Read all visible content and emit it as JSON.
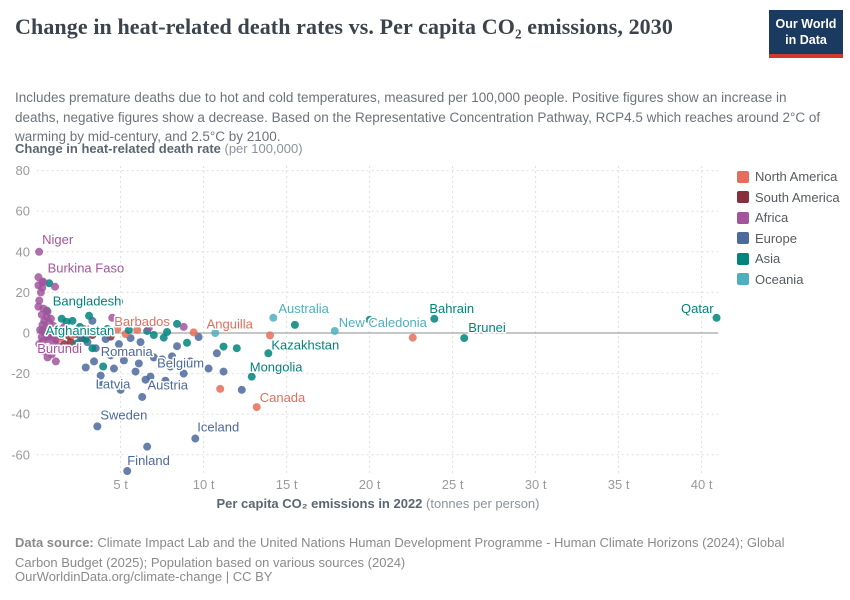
{
  "header": {
    "title": "Change in heat-related death rates vs. Per capita CO₂ emissions, 2030",
    "logo_line1": "Our World",
    "logo_line2": "in Data"
  },
  "subtitle": "Includes premature deaths due to hot and cold temperatures, measured per 100,000 people. Positive figures show an increase in deaths, negative figures show a decrease. Based on the Representative Concentration Pathway, RCP4.5 which reaches around 2°C of warming by mid-century, and 2.5°C by 2100.",
  "footer": {
    "datasource_label": "Data source:",
    "datasource_text": " Climate Impact Lab and the United Nations Human Development Programme - Human Climate Horizons (2024); Global Carbon Budget (2025); Population based on various sources (2024)",
    "citation": "OurWorldinData.org/climate-change | CC BY"
  },
  "chart_data": {
    "type": "scatter",
    "x_axis": {
      "title_bold": "Per capita CO₂ emissions in 2022",
      "title_light": " (tonnes per person)",
      "ticks": [
        5,
        10,
        15,
        20,
        25,
        30,
        35,
        40
      ],
      "tick_suffix": " t",
      "lim": [
        0,
        41
      ]
    },
    "y_axis": {
      "title_bold": "Change in heat-related death rate",
      "title_light": " (per 100,000)",
      "ticks": [
        80,
        60,
        40,
        20,
        0,
        -20,
        -40,
        -60
      ],
      "lim": [
        -72,
        84
      ]
    },
    "grid": "dashed",
    "legend_position": "right",
    "legend": [
      {
        "name": "North America",
        "color": "#e56e5a"
      },
      {
        "name": "South America",
        "color": "#883039"
      },
      {
        "name": "Africa",
        "color": "#a2559c"
      },
      {
        "name": "Europe",
        "color": "#4c6a9c"
      },
      {
        "name": "Asia",
        "color": "#00847e"
      },
      {
        "name": "Oceania",
        "color": "#4eafbe"
      }
    ],
    "series": [
      {
        "name": "South America",
        "color": "#883039",
        "points": [
          [
            0.8,
            -0.5
          ],
          [
            1.4,
            0.5
          ],
          [
            1.9,
            -1.5
          ],
          [
            2.3,
            -0.5
          ],
          [
            2.7,
            -2.5
          ],
          [
            3.3,
            -1
          ],
          [
            4.4,
            -1.8
          ],
          [
            1.1,
            -3.2
          ],
          [
            2.0,
            -4.5
          ],
          [
            1.6,
            -5.5
          ],
          [
            0.6,
            -1.8
          ],
          [
            2.9,
            1
          ]
        ],
        "labeled": []
      },
      {
        "name": "Europe",
        "color": "#4c6a9c",
        "points": [
          [
            2.0,
            -0.5
          ],
          [
            2.6,
            -2
          ],
          [
            3.0,
            -4.5
          ],
          [
            2.3,
            -6.5
          ],
          [
            4.1,
            -3
          ],
          [
            4.9,
            -5.5
          ],
          [
            5.6,
            -2.5
          ],
          [
            6.2,
            -4.5
          ],
          [
            8.4,
            -6.5
          ],
          [
            8.1,
            -11.5
          ],
          [
            4.4,
            -11
          ],
          [
            5.2,
            -13.5
          ],
          [
            6.1,
            -15
          ],
          [
            7.0,
            -12
          ],
          [
            8.0,
            -16.5
          ],
          [
            9.2,
            -14
          ],
          [
            10.3,
            -17.5
          ],
          [
            5.9,
            -19
          ],
          [
            6.8,
            -21.5
          ],
          [
            7.7,
            -23.5
          ],
          [
            8.8,
            -20
          ],
          [
            4.6,
            -17.5
          ],
          [
            3.4,
            -14
          ],
          [
            2.9,
            -17
          ],
          [
            3.9,
            -25.5
          ],
          [
            5.0,
            -28
          ],
          [
            6.3,
            -31.5
          ],
          [
            12.3,
            -28
          ],
          [
            11.2,
            -19
          ],
          [
            6.6,
            -56
          ],
          [
            3.3,
            6
          ],
          [
            9.7,
            -2
          ],
          [
            10.8,
            -10
          ]
        ],
        "labeled": [
          {
            "x": 3.5,
            "y": -7.5,
            "label": "Romania",
            "dx": 5,
            "dy": 8,
            "anchor": "start"
          },
          {
            "x": 7.5,
            "y": -13,
            "label": "Belgium",
            "dx": -5,
            "dy": 8,
            "anchor": "start"
          },
          {
            "x": 3.8,
            "y": -21,
            "label": "Latvia",
            "dx": -5,
            "dy": 13,
            "anchor": "start"
          },
          {
            "x": 6.5,
            "y": -23,
            "label": "Austria",
            "dx": 2,
            "dy": 10,
            "anchor": "start"
          },
          {
            "x": 3.6,
            "y": -46,
            "label": "Sweden",
            "dx": 3,
            "dy": -7,
            "anchor": "start"
          },
          {
            "x": 9.5,
            "y": -52,
            "label": "Iceland",
            "dx": 2,
            "dy": -7,
            "anchor": "start"
          },
          {
            "x": 5.4,
            "y": -68,
            "label": "Finland",
            "dx": 0,
            "dy": -6,
            "anchor": "start"
          }
        ]
      },
      {
        "name": "North America",
        "color": "#e56e5a",
        "points": [
          [
            1.35,
            -2.5
          ],
          [
            2.1,
            -1
          ],
          [
            3.2,
            0.5
          ],
          [
            6.0,
            1.5
          ],
          [
            5.3,
            -0.5
          ],
          [
            2.8,
            2
          ],
          [
            11.0,
            -27.5
          ],
          [
            22.6,
            -2.3
          ],
          [
            14.0,
            -1.2
          ]
        ],
        "labeled": [
          {
            "x": 4.8,
            "y": 2,
            "label": "Barbados",
            "dx": -3,
            "dy": -3,
            "anchor": "start"
          },
          {
            "x": 9.4,
            "y": 0.3,
            "label": "Anguilla",
            "dx": 13,
            "dy": -4,
            "anchor": "start"
          },
          {
            "x": 13.2,
            "y": -36.5,
            "label": "Canada",
            "dx": 3,
            "dy": -5,
            "anchor": "start"
          }
        ]
      },
      {
        "name": "Oceania",
        "color": "#4eafbe",
        "points": [
          [
            10.7,
            0
          ]
        ],
        "labeled": [
          {
            "x": 14.2,
            "y": 7.5,
            "label": "Australia",
            "dx": 5,
            "dy": -5,
            "anchor": "start"
          },
          {
            "x": 17.9,
            "y": 1,
            "label": "New Caledonia",
            "dx": 4,
            "dy": -4,
            "anchor": "start"
          }
        ]
      },
      {
        "name": "Asia",
        "color": "#00847e",
        "points": [
          [
            0.7,
            24.5
          ],
          [
            4.9,
            15.5
          ],
          [
            1.45,
            7
          ],
          [
            1.75,
            5.5
          ],
          [
            2.1,
            6
          ],
          [
            3.1,
            8.5
          ],
          [
            2.55,
            3
          ],
          [
            3.3,
            -7.5
          ],
          [
            3.95,
            -16.5
          ],
          [
            8.4,
            4.5
          ],
          [
            7.6,
            -2.3
          ],
          [
            9.0,
            -4.8
          ],
          [
            11.2,
            -6.7
          ],
          [
            6.6,
            1
          ],
          [
            7.0,
            -1
          ],
          [
            7.8,
            0.5
          ],
          [
            5.5,
            1.5
          ],
          [
            4.2,
            2
          ],
          [
            2.9,
            -3
          ],
          [
            2.4,
            -5
          ],
          [
            12.0,
            -7.5
          ],
          [
            15.5,
            4
          ],
          [
            20.0,
            6.5
          ]
        ],
        "labeled": [
          {
            "x": 0.55,
            "y": 11,
            "label": "Bangladesh",
            "dx": 6,
            "dy": -5,
            "anchor": "start"
          },
          {
            "x": 0.3,
            "y": 1,
            "label": "Afghanistan",
            "dx": 3,
            "dy": 4,
            "anchor": "start"
          },
          {
            "x": 13.9,
            "y": -10,
            "label": "Kazakhstan",
            "dx": 3,
            "dy": -4,
            "anchor": "start"
          },
          {
            "x": 12.9,
            "y": -21.5,
            "label": "Mongolia",
            "dx": -2,
            "dy": -5,
            "anchor": "start"
          },
          {
            "x": 23.9,
            "y": 7,
            "label": "Bahrain",
            "dx": -5,
            "dy": -6,
            "anchor": "start"
          },
          {
            "x": 25.7,
            "y": -2.5,
            "label": "Brunei",
            "dx": 4,
            "dy": -6,
            "anchor": "start"
          },
          {
            "x": 40.9,
            "y": 7.5,
            "label": "Qatar",
            "dx": -3,
            "dy": -5,
            "anchor": "end"
          }
        ]
      },
      {
        "name": "Africa",
        "color": "#a2559c",
        "points": [
          [
            0.05,
            27.5
          ],
          [
            0.33,
            25.3
          ],
          [
            0.05,
            23.5
          ],
          [
            0.28,
            22.3
          ],
          [
            1.05,
            22.8
          ],
          [
            0.2,
            20
          ],
          [
            0.1,
            16
          ],
          [
            0.05,
            13
          ],
          [
            0.35,
            12
          ],
          [
            0.6,
            10.5
          ],
          [
            0.25,
            9
          ],
          [
            0.55,
            8
          ],
          [
            0.8,
            7
          ],
          [
            0.4,
            6
          ],
          [
            0.7,
            5
          ],
          [
            0.3,
            4
          ],
          [
            0.95,
            3.5
          ],
          [
            0.5,
            2.5
          ],
          [
            0.15,
            1.5
          ],
          [
            0.75,
            1
          ],
          [
            1.2,
            2
          ],
          [
            1.6,
            3
          ],
          [
            0.45,
            0
          ],
          [
            0.85,
            -1
          ],
          [
            0.25,
            -2
          ],
          [
            0.6,
            -3
          ],
          [
            1.05,
            -2.5
          ],
          [
            1.4,
            -1.5
          ],
          [
            0.3,
            -4
          ],
          [
            0.95,
            -5
          ],
          [
            1.25,
            -6.5
          ],
          [
            0.55,
            -7.5
          ],
          [
            0.4,
            -9
          ],
          [
            0.85,
            -10.5
          ],
          [
            0.6,
            -12
          ],
          [
            1.1,
            -14
          ],
          [
            4.5,
            7.5
          ],
          [
            6.7,
            2.5
          ],
          [
            8.8,
            3
          ]
        ],
        "labeled": [
          {
            "x": 0.09,
            "y": 40,
            "label": "Niger",
            "dx": 3,
            "dy": -8,
            "anchor": "start"
          },
          {
            "x": 0.3,
            "y": 25,
            "label": "Burkina Faso",
            "dx": 5,
            "dy": -10,
            "anchor": "start"
          },
          {
            "x": 0.1,
            "y": -5.5,
            "label": "Burundi",
            "dx": -2,
            "dy": 9,
            "anchor": "start"
          }
        ]
      }
    ]
  }
}
